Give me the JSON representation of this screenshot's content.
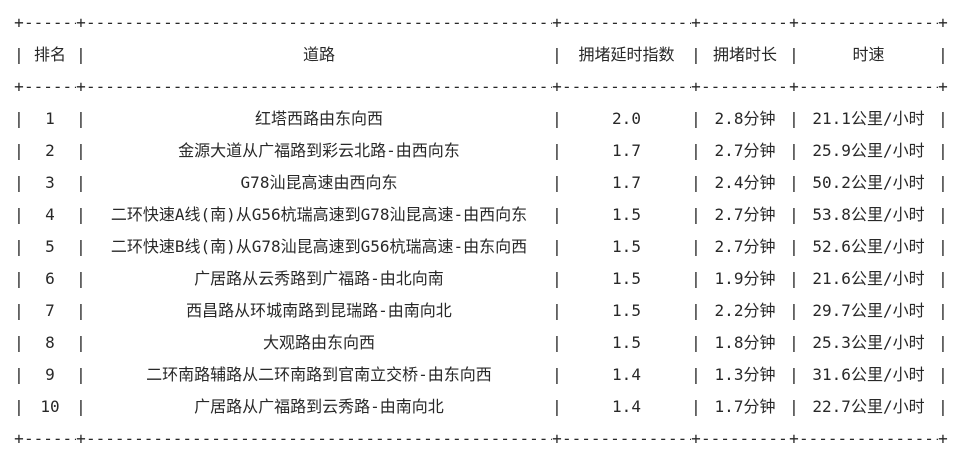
{
  "colors": {
    "text": "#282828",
    "background": "#ffffff"
  },
  "table": {
    "columns": [
      "排名",
      "道路",
      "拥堵延时指数",
      "拥堵时长",
      "时速"
    ],
    "rows": [
      {
        "rank": "1",
        "road": "红塔西路由东向西",
        "index": "2.0",
        "duration": "2.8分钟",
        "speed": "21.1公里/小时"
      },
      {
        "rank": "2",
        "road": "金源大道从广福路到彩云北路-由西向东",
        "index": "1.7",
        "duration": "2.7分钟",
        "speed": "25.9公里/小时"
      },
      {
        "rank": "3",
        "road": "G78汕昆高速由西向东",
        "index": "1.7",
        "duration": "2.4分钟",
        "speed": "50.2公里/小时"
      },
      {
        "rank": "4",
        "road": "二环快速A线(南)从G56杭瑞高速到G78汕昆高速-由西向东",
        "index": "1.5",
        "duration": "2.7分钟",
        "speed": "53.8公里/小时"
      },
      {
        "rank": "5",
        "road": "二环快速B线(南)从G78汕昆高速到G56杭瑞高速-由东向西",
        "index": "1.5",
        "duration": "2.7分钟",
        "speed": "52.6公里/小时"
      },
      {
        "rank": "6",
        "road": "广居路从云秀路到广福路-由北向南",
        "index": "1.5",
        "duration": "1.9分钟",
        "speed": "21.6公里/小时"
      },
      {
        "rank": "7",
        "road": "西昌路从环城南路到昆瑞路-由南向北",
        "index": "1.5",
        "duration": "2.2分钟",
        "speed": "29.7公里/小时"
      },
      {
        "rank": "8",
        "road": "大观路由东向西",
        "index": "1.5",
        "duration": "1.8分钟",
        "speed": "25.3公里/小时"
      },
      {
        "rank": "9",
        "road": "二环南路辅路从二环南路到官南立交桥-由东向西",
        "index": "1.4",
        "duration": "1.3分钟",
        "speed": "31.6公里/小时"
      },
      {
        "rank": "10",
        "road": "广居路从广福路到云秀路-由南向北",
        "index": "1.4",
        "duration": "1.7分钟",
        "speed": "22.7公里/小时"
      }
    ]
  },
  "chart_data": {
    "type": "table",
    "title": "",
    "columns": [
      "排名",
      "道路",
      "拥堵延时指数",
      "拥堵时长",
      "时速"
    ],
    "rows": [
      [
        "1",
        "红塔西路由东向西",
        "2.0",
        "2.8分钟",
        "21.1公里/小时"
      ],
      [
        "2",
        "金源大道从广福路到彩云北路-由西向东",
        "1.7",
        "2.7分钟",
        "25.9公里/小时"
      ],
      [
        "3",
        "G78汕昆高速由西向东",
        "1.7",
        "2.4分钟",
        "50.2公里/小时"
      ],
      [
        "4",
        "二环快速A线(南)从G56杭瑞高速到G78汕昆高速-由西向东",
        "1.5",
        "2.7分钟",
        "53.8公里/小时"
      ],
      [
        "5",
        "二环快速B线(南)从G78汕昆高速到G56杭瑞高速-由东向西",
        "1.5",
        "2.7分钟",
        "52.6公里/小时"
      ],
      [
        "6",
        "广居路从云秀路到广福路-由北向南",
        "1.5",
        "1.9分钟",
        "21.6公里/小时"
      ],
      [
        "7",
        "西昌路从环城南路到昆瑞路-由南向北",
        "1.5",
        "2.2分钟",
        "29.7公里/小时"
      ],
      [
        "8",
        "大观路由东向西",
        "1.5",
        "1.8分钟",
        "25.3公里/小时"
      ],
      [
        "9",
        "二环南路辅路从二环南路到官南立交桥-由东向西",
        "1.4",
        "1.3分钟",
        "31.6公里/小时"
      ],
      [
        "10",
        "广居路从广福路到云秀路-由南向北",
        "1.4",
        "1.7分钟",
        "22.7公里/小时"
      ]
    ]
  }
}
